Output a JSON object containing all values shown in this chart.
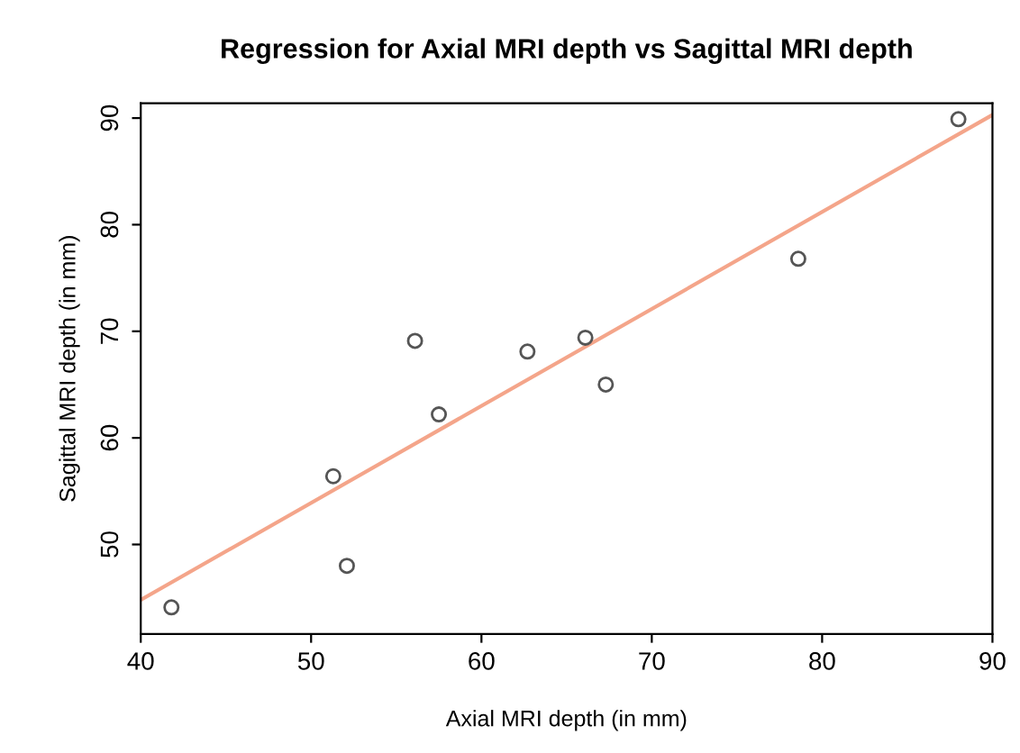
{
  "chart_data": {
    "type": "scatter",
    "title": "Regression for Axial MRI depth vs Sagittal MRI depth",
    "xlabel": "Axial MRI depth (in mm)",
    "ylabel": "Sagittal MRI depth (in mm)",
    "xlim": [
      40,
      90
    ],
    "ylim": [
      41.6,
      91.4
    ],
    "xticks": [
      40,
      50,
      60,
      70,
      80,
      90
    ],
    "yticks": [
      50,
      60,
      70,
      80,
      90
    ],
    "grid": false,
    "legend": false,
    "series": [
      {
        "marker": "circle",
        "color": "#555555",
        "x": [
          41.8,
          51.3,
          52.1,
          56.1,
          57.5,
          62.7,
          66.1,
          67.3,
          78.6,
          88.0
        ],
        "values": [
          44.1,
          56.4,
          48.0,
          69.1,
          62.2,
          68.1,
          69.4,
          65.0,
          76.8,
          89.9
        ]
      },
      {
        "type": "line",
        "marker": "none",
        "line_style": "solid",
        "color": "#f4a58a",
        "x": [
          40,
          90
        ],
        "values": [
          44.8,
          90.3
        ]
      }
    ]
  }
}
